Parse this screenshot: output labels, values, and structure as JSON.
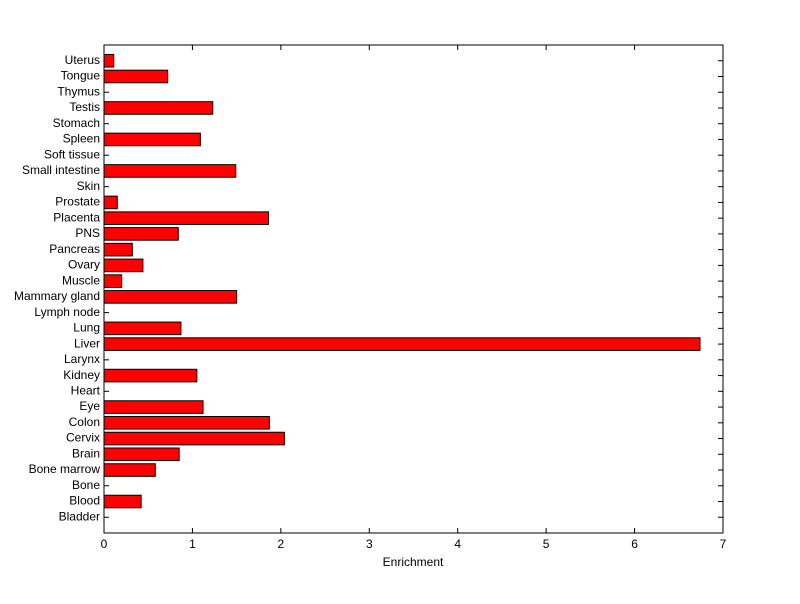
{
  "chart_data": {
    "type": "barh",
    "xlabel": "Enrichment",
    "categories": [
      "Bladder",
      "Blood",
      "Bone",
      "Bone marrow",
      "Brain",
      "Cervix",
      "Colon",
      "Eye",
      "Heart",
      "Kidney",
      "Larynx",
      "Liver",
      "Lung",
      "Lymph node",
      "Mammary gland",
      "Muscle",
      "Ovary",
      "Pancreas",
      "PNS",
      "Placenta",
      "Prostate",
      "Skin",
      "Small intestine",
      "Soft tissue",
      "Spleen",
      "Stomach",
      "Testis",
      "Thymus",
      "Tongue",
      "Uterus"
    ],
    "values": [
      0,
      0.42,
      0,
      0.58,
      0.85,
      2.04,
      1.87,
      1.12,
      0,
      1.05,
      0,
      6.74,
      0.87,
      0,
      1.5,
      0.2,
      0.44,
      0.32,
      0.84,
      1.86,
      0.15,
      0,
      1.49,
      0,
      1.09,
      0,
      1.23,
      0,
      0.72,
      0.11
    ],
    "color": "#ff0000",
    "xlim": [
      0,
      7
    ],
    "xticks": [
      0,
      1,
      2,
      3,
      4,
      5,
      6,
      7
    ]
  }
}
